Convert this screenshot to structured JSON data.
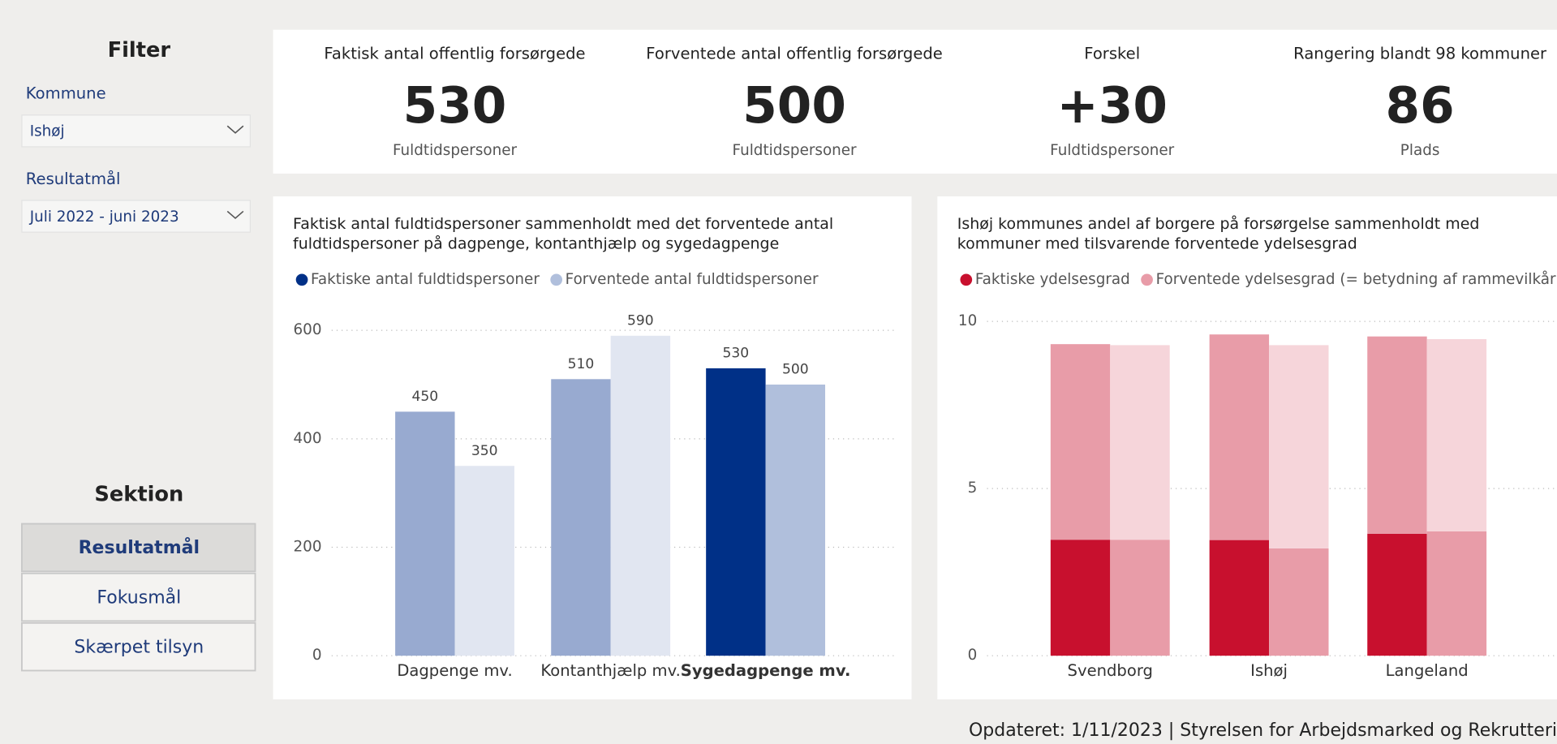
{
  "filter": {
    "title": "Filter",
    "fields": [
      {
        "label": "Kommune",
        "value": "Ishøj"
      },
      {
        "label": "Resultatmål",
        "value": "Juli 2022 - juni 2023"
      }
    ]
  },
  "section": {
    "title": "Sektion",
    "buttons": [
      "Resultatmål",
      "Fokusmål",
      "Skærpet tilsyn"
    ],
    "active": 0
  },
  "kpis": [
    {
      "title": "Faktisk antal offentlig forsørgede",
      "value": "530",
      "unit": "Fuldtidspersoner"
    },
    {
      "title": "Forventede antal offentlig forsørgede",
      "value": "500",
      "unit": "Fuldtidspersoner"
    },
    {
      "title": "Forskel",
      "value": "+30",
      "unit": "Fuldtidspersoner"
    },
    {
      "title": "Rangering blandt 98 kommuner",
      "value": "86",
      "unit": "Plads"
    }
  ],
  "chart_data": [
    {
      "type": "bar",
      "title": [
        "Faktisk antal fuldtidspersoner sammenholdt med det forventede antal",
        "fuldtidspersoner på dagpenge, kontanthjælp og sygedagpenge"
      ],
      "categories": [
        "Dagpenge mv.",
        "Kontanthjælp mv.",
        "Sygedagpenge mv."
      ],
      "series": [
        {
          "name": "Faktiske antal fuldtidspersoner",
          "color": "#003087",
          "colors": [
            "#98aad0",
            "#98aad0",
            "#003087"
          ],
          "values": [
            450,
            510,
            530
          ]
        },
        {
          "name": "Forventede antal fuldtidspersoner",
          "color": "#b0bfdc",
          "colors": [
            "#e1e6f1",
            "#e1e6f1",
            "#b0bfdc"
          ],
          "values": [
            350,
            590,
            500
          ]
        }
      ],
      "ylim": [
        0,
        600
      ],
      "yticks": [
        0,
        200,
        400,
        600
      ],
      "grid": true
    },
    {
      "type": "stacked_bar",
      "title": [
        "Ishøj kommunes andel af borgere på forsørgelse sammenholdt med",
        "kommuner med tilsvarende forventede ydelsesgrad"
      ],
      "categories": [
        "Svendborg",
        "Ishøj",
        "Langeland"
      ],
      "series": [
        {
          "name": "Faktiske ydelsesgrad",
          "color": "#c8102e",
          "stack": 0,
          "values": [
            3.47,
            3.46,
            3.65
          ],
          "value_labels": [
            "3,47",
            "3,46",
            "3,65"
          ]
        },
        {
          "color": "#e89ca8",
          "stack": 0,
          "values": [
            5.85,
            6.15,
            5.9
          ]
        },
        {
          "name": "Forventede ydelsesgrad (= betydning af rammevilkår)",
          "color": "#e89ca8",
          "stack": 1,
          "values": [
            3.47,
            3.21,
            3.72
          ],
          "value_labels": [
            "3,47",
            "3,21",
            "3,72"
          ]
        },
        {
          "color": "#f6d5da",
          "stack": 1,
          "values": [
            5.82,
            6.08,
            5.75
          ]
        }
      ],
      "ylim": [
        0,
        10
      ],
      "yticks": [
        0,
        5,
        10
      ],
      "grid": true
    }
  ],
  "footer": "Opdateret: 1/11/2023 | Styrelsen for Arbejdsmarked og Rekrutteri"
}
